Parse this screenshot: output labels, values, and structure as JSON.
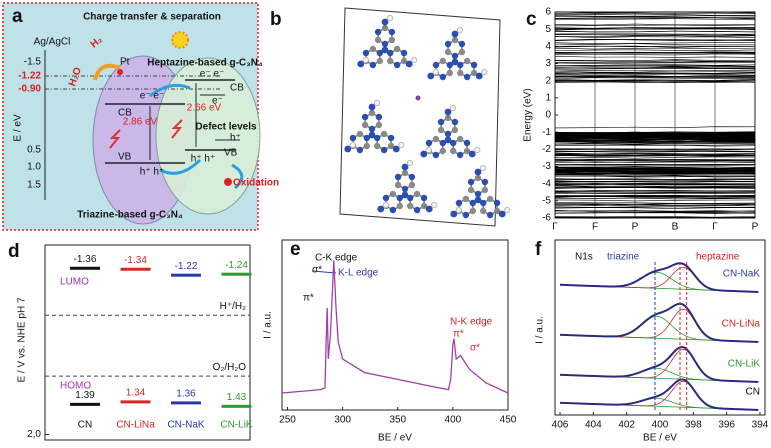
{
  "a": {
    "label": "a",
    "title": "Charge transfer & separation",
    "reference": "Ag/AgCl",
    "y_label": "E / eV",
    "yticks": [
      "-1.5",
      "0.5",
      "1.0",
      "1.5"
    ],
    "potentials": [
      "-1.22",
      "-0.90"
    ],
    "pt": "Pt",
    "h2": "H₂",
    "h2o": "H₂O",
    "left": {
      "cb": "CB",
      "electrons": "e⁻ e⁻",
      "gap": "2.86 eV",
      "vb": "VB",
      "holes": "h⁺ h⁺",
      "name": "Triazine-based g-C₃N₄"
    },
    "right": {
      "name": "Heptazine-based g-C₃N₄",
      "electrons": "e⁻ e⁻",
      "cb": "CB",
      "electron": "e⁻",
      "gap": "2.66 eV",
      "defect": "Defect levels",
      "hole": "h⁺",
      "vb": "VB",
      "holes": "h⁺ h⁺",
      "oxidation": "Oxidation"
    }
  },
  "b": {
    "label": "b"
  },
  "c": {
    "label": "c",
    "y_label": "Energy (eV)",
    "ylim": [
      -6,
      6
    ],
    "yticks": [
      6,
      5,
      4,
      3,
      2,
      1,
      0,
      -1,
      -2,
      -3,
      -4,
      -5,
      -6
    ],
    "xticks": [
      "Γ",
      "F",
      "P",
      "B",
      "Γ",
      "P"
    ]
  },
  "d": {
    "label": "d",
    "y_label": "E / V vs. NHE pH 7",
    "ylim": [
      -1.83,
      2.11
    ],
    "yticks": [
      {
        "value": 2,
        "label": "2,0"
      }
    ],
    "categories": [
      "CN",
      "CN-LiNa",
      "CN-NaK",
      "CN-LiK"
    ],
    "colors": [
      "#111111",
      "#d62728",
      "#2b3aa8",
      "#2e9a2e"
    ],
    "lumo_name": "LUMO",
    "homo_name": "HOMO",
    "lumo": [
      -1.36,
      -1.34,
      -1.22,
      -1.24
    ],
    "homo": [
      1.39,
      1.34,
      1.36,
      1.43
    ],
    "references": [
      {
        "label": "H⁺/H₂",
        "value": -0.41
      },
      {
        "label": "O₂/H₂O",
        "value": 0.82
      }
    ]
  },
  "e": {
    "label": "e",
    "y_label": "I / a.u.",
    "x_label": "BE / eV",
    "xlim": [
      245,
      450
    ],
    "ylim": [
      0,
      100
    ],
    "xticks": [
      250,
      300,
      350,
      400,
      450
    ],
    "color": "#a040a8",
    "spectrum": {
      "x": [
        245,
        280,
        284,
        285,
        286,
        287,
        289,
        292,
        294,
        296,
        300,
        320,
        350,
        380,
        396,
        398,
        400,
        401,
        403,
        407,
        415,
        430,
        450
      ],
      "y": [
        10,
        12,
        13,
        40,
        60,
        30,
        45,
        88,
        60,
        40,
        30,
        22,
        18,
        14,
        12,
        18,
        38,
        42,
        30,
        32,
        24,
        16,
        10
      ]
    },
    "annotations": {
      "ck": "C-K edge",
      "sigma1": "σ*",
      "pi1": "π*",
      "kl": "K-L edge",
      "nk": "N-K edge",
      "pi2": "π*",
      "sigma2": "σ*"
    }
  },
  "f": {
    "label": "f",
    "title": "N1s",
    "y_label": "I / a.u.",
    "x_label": "BE / eV",
    "xlim": [
      406.3,
      393.7
    ],
    "xticks": [
      406,
      404,
      402,
      400,
      398,
      396,
      394
    ],
    "triazine": "triazine",
    "heptazine": "heptazine",
    "samples": [
      "CN-NaK",
      "CN-LiNa",
      "CN-LiK",
      "CN"
    ],
    "sample_colors": [
      "#2b3aa8",
      "#d62728",
      "#2e9a2e",
      "#111111"
    ]
  }
}
